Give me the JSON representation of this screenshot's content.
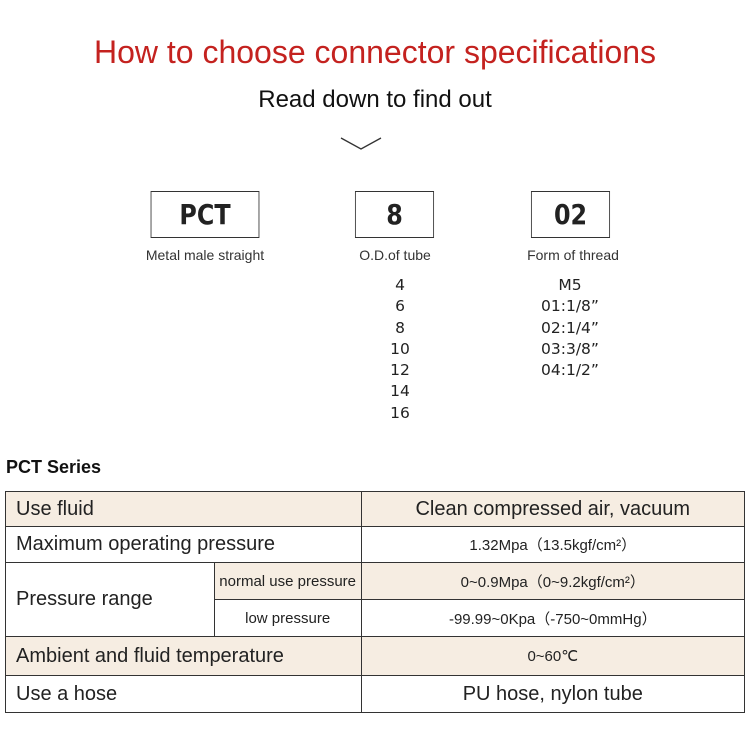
{
  "header": {
    "title": "How to choose connector specifications",
    "subtitle": "Read down to find out",
    "chevron_icon": "chevron-down-icon"
  },
  "code": {
    "parts": [
      {
        "code": "PCT",
        "label": "Metal male straight",
        "options": []
      },
      {
        "code": "8",
        "label": "O.D.of tube",
        "options": [
          "4",
          "6",
          "8",
          "10",
          "12",
          "14",
          "16"
        ]
      },
      {
        "code": "02",
        "label": "Form of thread",
        "options": [
          "M5",
          "01:1/8”",
          "02:1/4”",
          "03:3/8”",
          "04:1/2”"
        ]
      }
    ]
  },
  "series_title": "PCT Series",
  "table": {
    "use_fluid": {
      "label": "Use fluid",
      "value": "Clean compressed air, vacuum"
    },
    "max_pressure": {
      "label": "Maximum operating pressure",
      "value": "1.32Mpa（13.5kgf/cm²）"
    },
    "pressure_range": {
      "label": "Pressure range",
      "normal_label": "normal use pressure",
      "normal_value": "0~0.9Mpa（0~9.2kgf/cm²）",
      "low_label": "low pressure",
      "low_value": "-99.99~0Kpa（-750~0mmHg）"
    },
    "temperature": {
      "label": "Ambient and fluid temperature",
      "value": "0~60℃"
    },
    "hose": {
      "label": "Use a hose",
      "value": "PU hose, nylon tube"
    }
  },
  "colors": {
    "title": "#c4221f",
    "row_highlight": "#f6ede2"
  }
}
